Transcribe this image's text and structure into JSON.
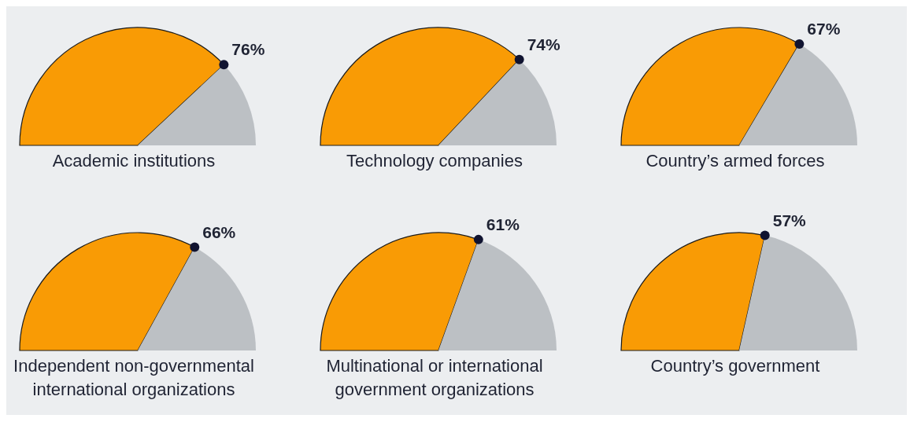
{
  "chart_data": [
    {
      "type": "pie",
      "title": "Academic institutions",
      "categories": [
        null,
        null
      ],
      "values": [
        76,
        24
      ],
      "colors": [
        "#f99b05",
        "#bcc0c4"
      ],
      "value_labels": [
        "76%",
        null
      ]
    },
    {
      "type": "pie",
      "title": "Technology companies",
      "categories": [
        null,
        null
      ],
      "values": [
        74,
        26
      ],
      "colors": [
        "#f99b05",
        "#bcc0c4"
      ],
      "value_labels": [
        "74%",
        null
      ]
    },
    {
      "type": "pie",
      "title": "Country’s armed forces",
      "categories": [
        null,
        null
      ],
      "values": [
        67,
        33
      ],
      "colors": [
        "#f99b05",
        "#bcc0c4"
      ],
      "value_labels": [
        "67%",
        null
      ]
    },
    {
      "type": "pie",
      "title": "Independent non-governmental international organizations",
      "categories": [
        null,
        null
      ],
      "values": [
        66,
        34
      ],
      "colors": [
        "#f99b05",
        "#bcc0c4"
      ],
      "value_labels": [
        "66%",
        null
      ]
    },
    {
      "type": "pie",
      "title": "Multinational or international government organizations",
      "categories": [
        null,
        null
      ],
      "values": [
        61,
        39
      ],
      "colors": [
        "#f99b05",
        "#bcc0c4"
      ],
      "value_labels": [
        "61%",
        null
      ]
    },
    {
      "type": "pie",
      "title": "Country’s government",
      "categories": [
        null,
        null
      ],
      "values": [
        57,
        43
      ],
      "colors": [
        "#f99b05",
        "#bcc0c4"
      ],
      "value_labels": [
        "57%",
        null
      ]
    }
  ]
}
